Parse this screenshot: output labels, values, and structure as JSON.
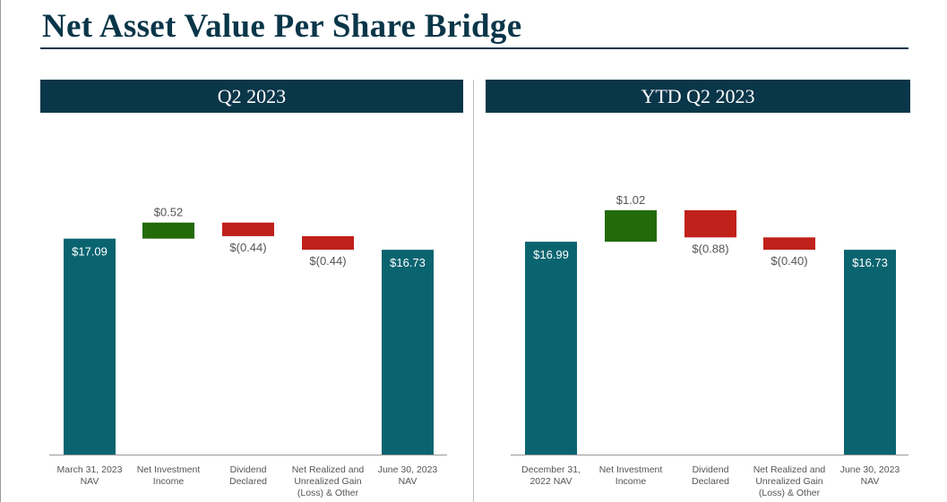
{
  "title": "Net Asset Value Per Share Bridge",
  "colors": {
    "total": "#0a6470",
    "increase": "#236a0a",
    "decrease": "#c0211b",
    "header": "#0a3649",
    "text": "#555555"
  },
  "chart_data": [
    {
      "type": "bar",
      "subtype": "waterfall",
      "title": "Q2 2023",
      "categories": [
        "March 31, 2023\nNAV",
        "Net Investment\nIncome",
        "Dividend\nDeclared",
        "Net Realized and\nUnrealized Gain\n(Loss) & Other",
        "June 30, 2023\nNAV"
      ],
      "values": [
        17.09,
        0.52,
        -0.44,
        -0.44,
        16.73
      ],
      "kinds": [
        "total",
        "increase",
        "decrease",
        "decrease",
        "total"
      ],
      "data_labels": [
        "$17.09",
        "$0.52",
        "$(0.44)",
        "$(0.44)",
        "$16.73"
      ],
      "ylim": [
        10.1,
        18.5
      ],
      "grid": false
    },
    {
      "type": "bar",
      "subtype": "waterfall",
      "title": "YTD Q2 2023",
      "categories": [
        "December 31,\n2022 NAV",
        "Net Investment\nIncome",
        "Dividend\nDeclared",
        "Net Realized and\nUnrealized Gain\n(Loss) & Other",
        "June 30, 2023\nNAV"
      ],
      "values": [
        16.99,
        1.02,
        -0.88,
        -0.4,
        16.73
      ],
      "kinds": [
        "total",
        "increase",
        "decrease",
        "decrease",
        "total"
      ],
      "data_labels": [
        "$16.99",
        "$1.02",
        "$(0.88)",
        "$(0.40)",
        "$16.73"
      ],
      "ylim": [
        10.1,
        18.5
      ],
      "grid": false
    }
  ]
}
